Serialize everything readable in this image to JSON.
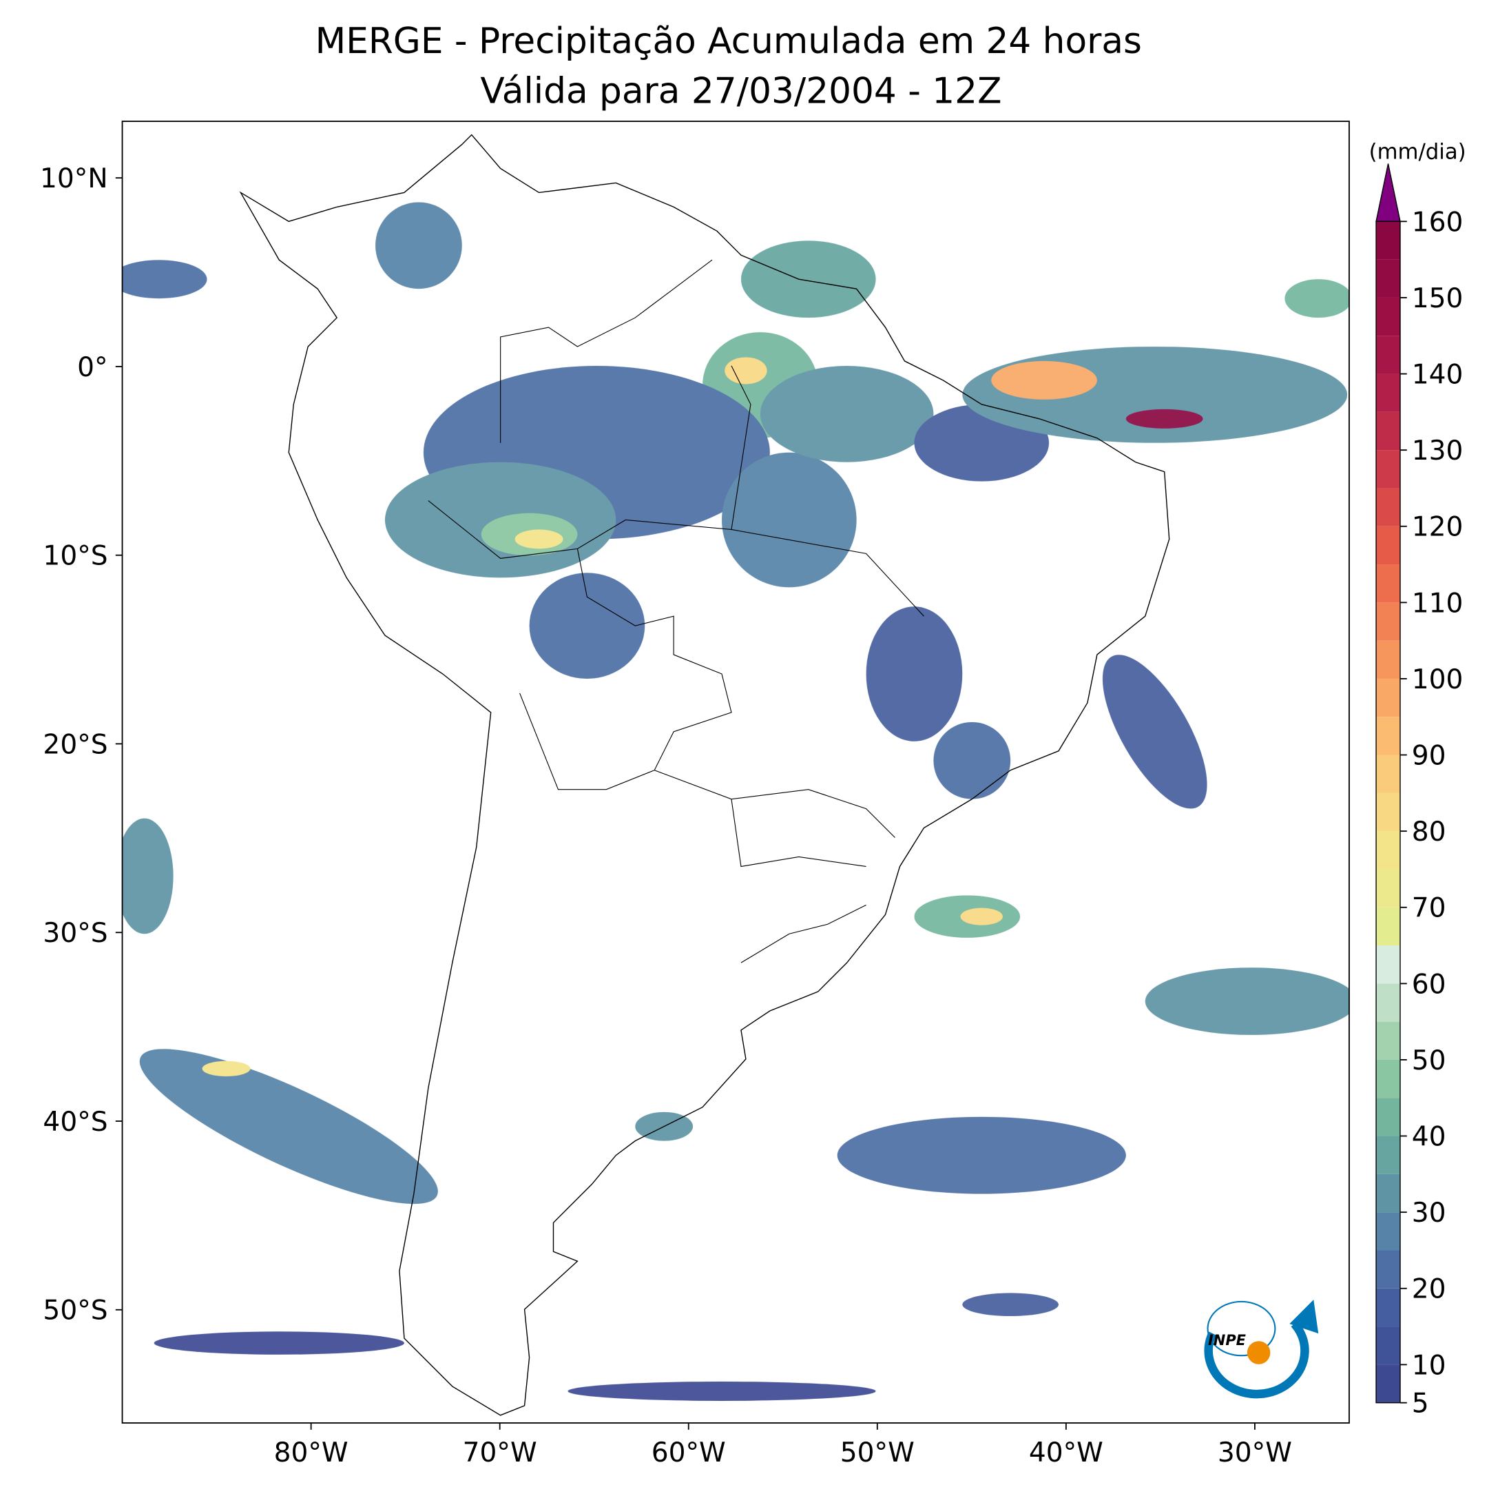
{
  "chart_data": {
    "type": "map",
    "title": "MERGE - Precipitação Acumulada em 24 horas",
    "subtitle": "Válida para 27/03/2004 - 12Z",
    "xlim": [
      -90,
      -25
    ],
    "ylim": [
      -56,
      13
    ],
    "xticks": [
      {
        "value": -80,
        "label": "80°W"
      },
      {
        "value": -70,
        "label": "70°W"
      },
      {
        "value": -60,
        "label": "60°W"
      },
      {
        "value": -50,
        "label": "50°W"
      },
      {
        "value": -40,
        "label": "40°W"
      },
      {
        "value": -30,
        "label": "30°W"
      }
    ],
    "yticks": [
      {
        "value": 10,
        "label": "10°N"
      },
      {
        "value": 0,
        "label": "0°"
      },
      {
        "value": -10,
        "label": "10°S"
      },
      {
        "value": -20,
        "label": "20°S"
      },
      {
        "value": -30,
        "label": "30°S"
      },
      {
        "value": -40,
        "label": "40°S"
      },
      {
        "value": -50,
        "label": "50°S"
      }
    ],
    "colorbar": {
      "label": "(mm/dia)",
      "clim": [
        5,
        160
      ],
      "step": 5,
      "ticks": [
        5,
        10,
        20,
        30,
        40,
        50,
        60,
        70,
        80,
        90,
        100,
        110,
        120,
        130,
        140,
        150,
        160
      ],
      "colors": [
        "#3d4a92",
        "#405399",
        "#455e9f",
        "#4d6fa5",
        "#5683a7",
        "#5e94a4",
        "#66a5a0",
        "#74b69d",
        "#89c6a1",
        "#a3d3ae",
        "#bfe0c6",
        "#d8ece0",
        "#e3ec8f",
        "#ece98c",
        "#f3e389",
        "#f8d882",
        "#facb7a",
        "#fbbb70",
        "#f9a865",
        "#f6965c",
        "#f28254",
        "#ed6e4c",
        "#e55b48",
        "#da4a49",
        "#cd3b4b",
        "#bf2c4a",
        "#b21f48",
        "#a61646",
        "#9c0f44",
        "#930b43",
        "#8a0741"
      ],
      "extend_color": "#800080"
    },
    "logo_text": "INPE"
  }
}
